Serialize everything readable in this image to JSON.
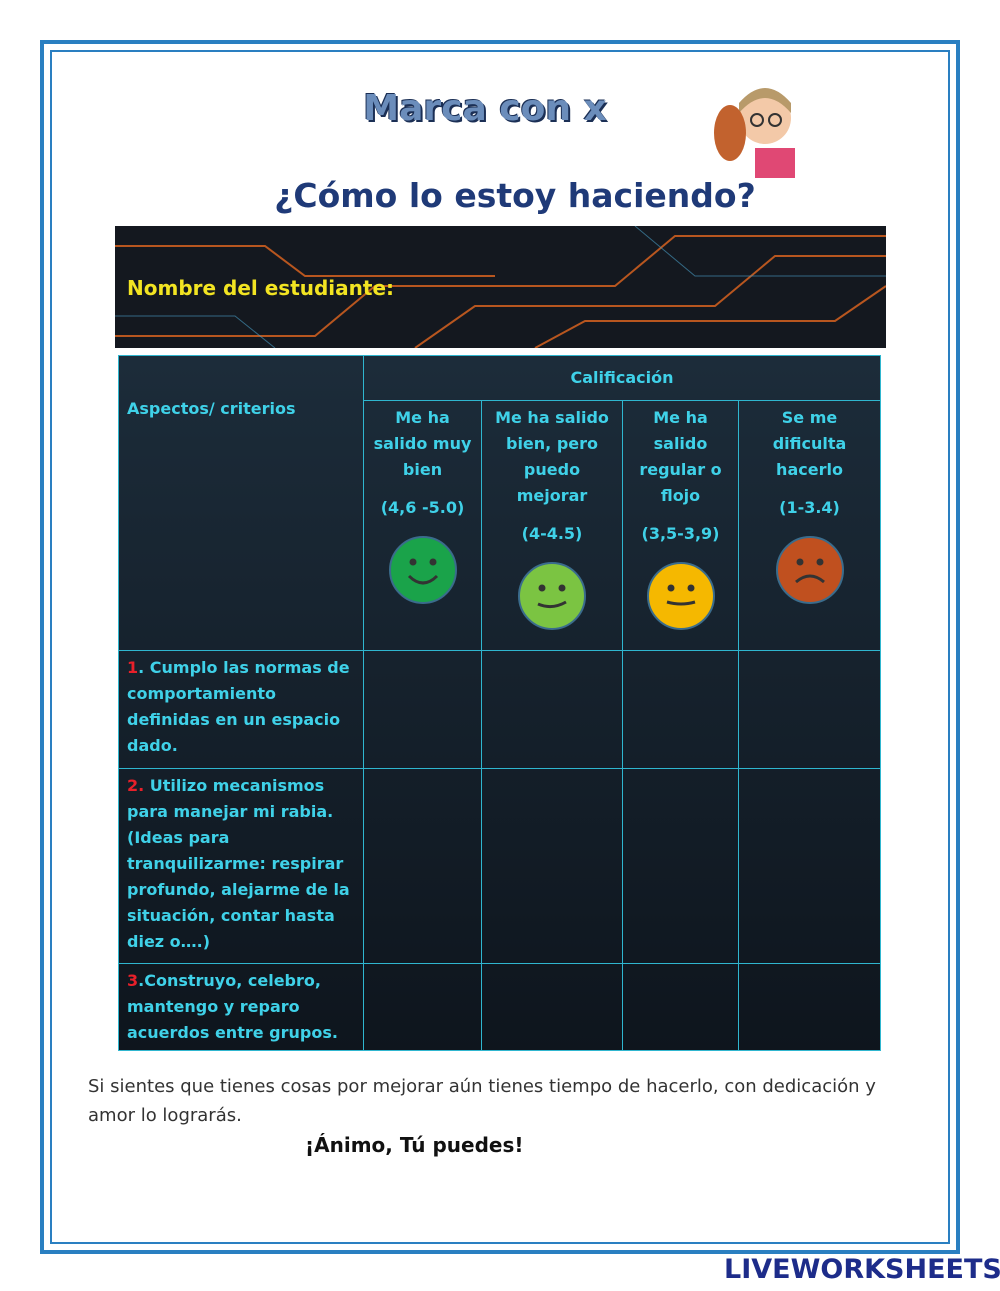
{
  "header": {
    "title": "Marca con x",
    "subtitle": "¿Cómo lo estoy haciendo?"
  },
  "banner": {
    "label": "Nombre del estudiante:"
  },
  "table": {
    "aspect_header": "Aspectos/ criterios",
    "group_header": "Calificación",
    "columns": [
      {
        "label": "Me ha salido muy bien",
        "range": "(4,6 -5.0)"
      },
      {
        "label": "Me ha salido bien, pero puedo mejorar",
        "range": "(4-4.5)"
      },
      {
        "label": "Me ha salido regular o flojo",
        "range": "(3,5-3,9)"
      },
      {
        "label": "Se me dificulta hacerlo",
        "range": "(1-3.4)"
      }
    ],
    "rows": [
      {
        "number": "1",
        "text": ". Cumplo las normas de comportamiento definidas en un espacio dado."
      },
      {
        "number": "2.",
        "text": " Utilizo mecanismos para manejar mi rabia. (Ideas para tranquilizarme: respirar profundo, alejarme de la situación, contar hasta diez o….)"
      },
      {
        "number": "3",
        "text": ".Construyo, celebro, mantengo y reparo acuerdos entre grupos."
      }
    ]
  },
  "footer": {
    "message": "Si sientes que tienes cosas por mejorar aún tienes tiempo de hacerlo, con dedicación y amor lo lograrás.",
    "cheer": "¡Ánimo, Tú puedes!"
  },
  "brand": "LIVEWORKSHEETS"
}
